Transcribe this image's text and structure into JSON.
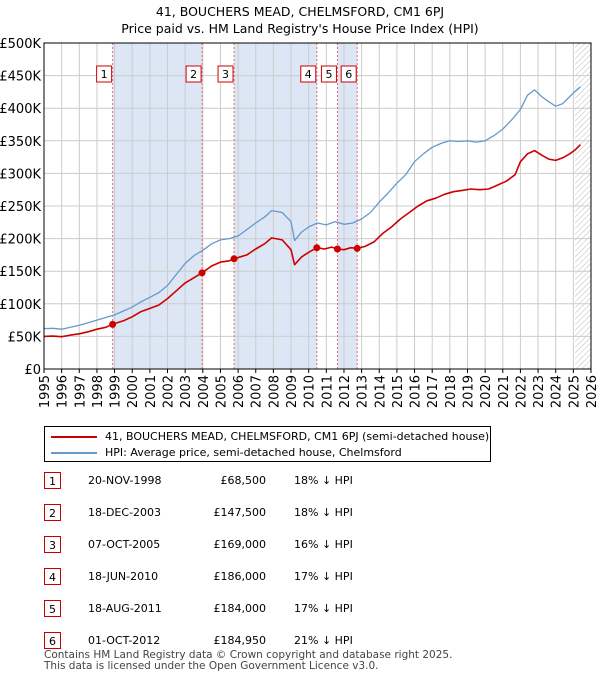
{
  "title_line1": "41, BOUCHERS MEAD, CHELMSFORD, CM1 6PJ",
  "title_line2": "Price paid vs. HM Land Registry's House Price Index (HPI)",
  "colors": {
    "price": "#cc0000",
    "hpi": "#6699cc",
    "shade": "#dde6f5",
    "grid": "#cccccc",
    "vline": "#e07070"
  },
  "chart_data": {
    "type": "line",
    "title": "Price paid vs. HM Land Registry's House Price Index (HPI)",
    "xlim": [
      1995,
      2026
    ],
    "ylim": [
      0,
      500000
    ],
    "y_ticks": [
      0,
      50000,
      100000,
      150000,
      200000,
      250000,
      300000,
      350000,
      400000,
      450000,
      500000
    ],
    "y_tick_labels": [
      "£0",
      "£50K",
      "£100K",
      "£150K",
      "£200K",
      "£250K",
      "£300K",
      "£350K",
      "£400K",
      "£450K",
      "£500K"
    ],
    "x_ticks": [
      1995,
      1996,
      1997,
      1998,
      1999,
      2000,
      2001,
      2002,
      2003,
      2004,
      2005,
      2006,
      2007,
      2008,
      2009,
      2010,
      2011,
      2012,
      2013,
      2014,
      2015,
      2016,
      2017,
      2018,
      2019,
      2020,
      2021,
      2022,
      2023,
      2024,
      2025,
      2026
    ],
    "shaded_periods": [
      [
        1998.89,
        2003.96
      ],
      [
        2005.77,
        2010.46
      ],
      [
        2011.63,
        2012.75
      ]
    ],
    "future_hatch_from": 2025.1,
    "series": [
      {
        "name": "41, BOUCHERS MEAD, CHELMSFORD, CM1 6PJ (semi-detached house)",
        "color": "#cc0000",
        "x": [
          1995.0,
          1995.5,
          1996.0,
          1996.5,
          1997.0,
          1997.5,
          1998.0,
          1998.5,
          1998.89,
          1999.5,
          2000.0,
          2000.5,
          2001.0,
          2001.5,
          2002.0,
          2002.5,
          2003.0,
          2003.5,
          2003.96,
          2004.5,
          2005.0,
          2005.5,
          2005.77,
          2006.5,
          2007.0,
          2007.5,
          2007.9,
          2008.5,
          2009.0,
          2009.2,
          2009.6,
          2010.0,
          2010.46,
          2010.9,
          2011.3,
          2011.63,
          2012.0,
          2012.4,
          2012.75,
          2013.2,
          2013.7,
          2014.2,
          2014.7,
          2015.2,
          2015.7,
          2016.2,
          2016.7,
          2017.2,
          2017.7,
          2018.2,
          2018.7,
          2019.2,
          2019.7,
          2020.2,
          2020.7,
          2021.2,
          2021.7,
          2022.0,
          2022.4,
          2022.8,
          2023.2,
          2023.6,
          2024.0,
          2024.4,
          2024.8,
          2025.1,
          2025.4
        ],
        "values": [
          50000,
          50500,
          49500,
          52000,
          54000,
          57000,
          61000,
          64000,
          68500,
          74000,
          80000,
          88000,
          93000,
          98000,
          108000,
          120000,
          132000,
          140000,
          147500,
          158000,
          164000,
          166000,
          169000,
          175000,
          184000,
          192000,
          201000,
          198000,
          183000,
          160000,
          172000,
          179000,
          186000,
          184000,
          187000,
          184000,
          183000,
          186000,
          184950,
          188000,
          195000,
          208000,
          218000,
          230000,
          240000,
          250000,
          258000,
          262000,
          268000,
          272000,
          274000,
          276000,
          275000,
          276000,
          282000,
          288000,
          298000,
          318000,
          330000,
          335000,
          328000,
          322000,
          320000,
          324000,
          330000,
          336000,
          344000
        ]
      },
      {
        "name": "HPI: Average price, semi-detached house, Chelmsford",
        "color": "#6699cc",
        "x": [
          1995.0,
          1995.5,
          1996.0,
          1996.5,
          1997.0,
          1997.5,
          1998.0,
          1998.5,
          1999.0,
          1999.5,
          2000.0,
          2000.5,
          2001.0,
          2001.5,
          2002.0,
          2002.5,
          2003.0,
          2003.5,
          2004.0,
          2004.5,
          2005.0,
          2005.5,
          2006.0,
          2006.5,
          2007.0,
          2007.5,
          2007.9,
          2008.5,
          2009.0,
          2009.2,
          2009.6,
          2010.0,
          2010.5,
          2011.0,
          2011.5,
          2012.0,
          2012.5,
          2013.0,
          2013.5,
          2014.0,
          2014.5,
          2015.0,
          2015.5,
          2016.0,
          2016.5,
          2017.0,
          2017.5,
          2018.0,
          2018.5,
          2019.0,
          2019.5,
          2020.0,
          2020.5,
          2021.0,
          2021.5,
          2022.0,
          2022.4,
          2022.8,
          2023.2,
          2023.6,
          2024.0,
          2024.4,
          2024.8,
          2025.1,
          2025.4
        ],
        "values": [
          62000,
          62500,
          61000,
          64000,
          67000,
          71000,
          75000,
          79000,
          83000,
          89000,
          95000,
          103000,
          110000,
          117000,
          128000,
          145000,
          162000,
          174000,
          182000,
          192000,
          198000,
          200000,
          204000,
          214000,
          224000,
          233000,
          243000,
          240000,
          226000,
          197000,
          210000,
          218000,
          224000,
          221000,
          226000,
          222000,
          224000,
          230000,
          240000,
          256000,
          270000,
          285000,
          298000,
          318000,
          330000,
          340000,
          346000,
          350000,
          349000,
          350000,
          348000,
          350000,
          358000,
          368000,
          382000,
          398000,
          420000,
          428000,
          418000,
          410000,
          403000,
          407000,
          418000,
          426000,
          433000
        ]
      }
    ],
    "sales": [
      {
        "num": "1",
        "x": 1998.89,
        "price": 68500
      },
      {
        "num": "2",
        "x": 2003.96,
        "price": 147500
      },
      {
        "num": "3",
        "x": 2005.77,
        "price": 169000
      },
      {
        "num": "4",
        "x": 2010.46,
        "price": 186000
      },
      {
        "num": "5",
        "x": 2011.63,
        "price": 184000
      },
      {
        "num": "6",
        "x": 2012.75,
        "price": 184950
      }
    ]
  },
  "legend": {
    "price_label": "41, BOUCHERS MEAD, CHELMSFORD, CM1 6PJ (semi-detached house)",
    "hpi_label": "HPI: Average price, semi-detached house, Chelmsford"
  },
  "sales_table": [
    {
      "num": "1",
      "date": "20-NOV-1998",
      "price": "£68,500",
      "hpi": "18% ↓ HPI"
    },
    {
      "num": "2",
      "date": "18-DEC-2003",
      "price": "£147,500",
      "hpi": "18% ↓ HPI"
    },
    {
      "num": "3",
      "date": "07-OCT-2005",
      "price": "£169,000",
      "hpi": "16% ↓ HPI"
    },
    {
      "num": "4",
      "date": "18-JUN-2010",
      "price": "£186,000",
      "hpi": "17% ↓ HPI"
    },
    {
      "num": "5",
      "date": "18-AUG-2011",
      "price": "£184,000",
      "hpi": "17% ↓ HPI"
    },
    {
      "num": "6",
      "date": "01-OCT-2012",
      "price": "£184,950",
      "hpi": "21% ↓ HPI"
    }
  ],
  "footer": {
    "line1": "Contains HM Land Registry data © Crown copyright and database right 2025.",
    "line2": "This data is licensed under the Open Government Licence v3.0."
  }
}
